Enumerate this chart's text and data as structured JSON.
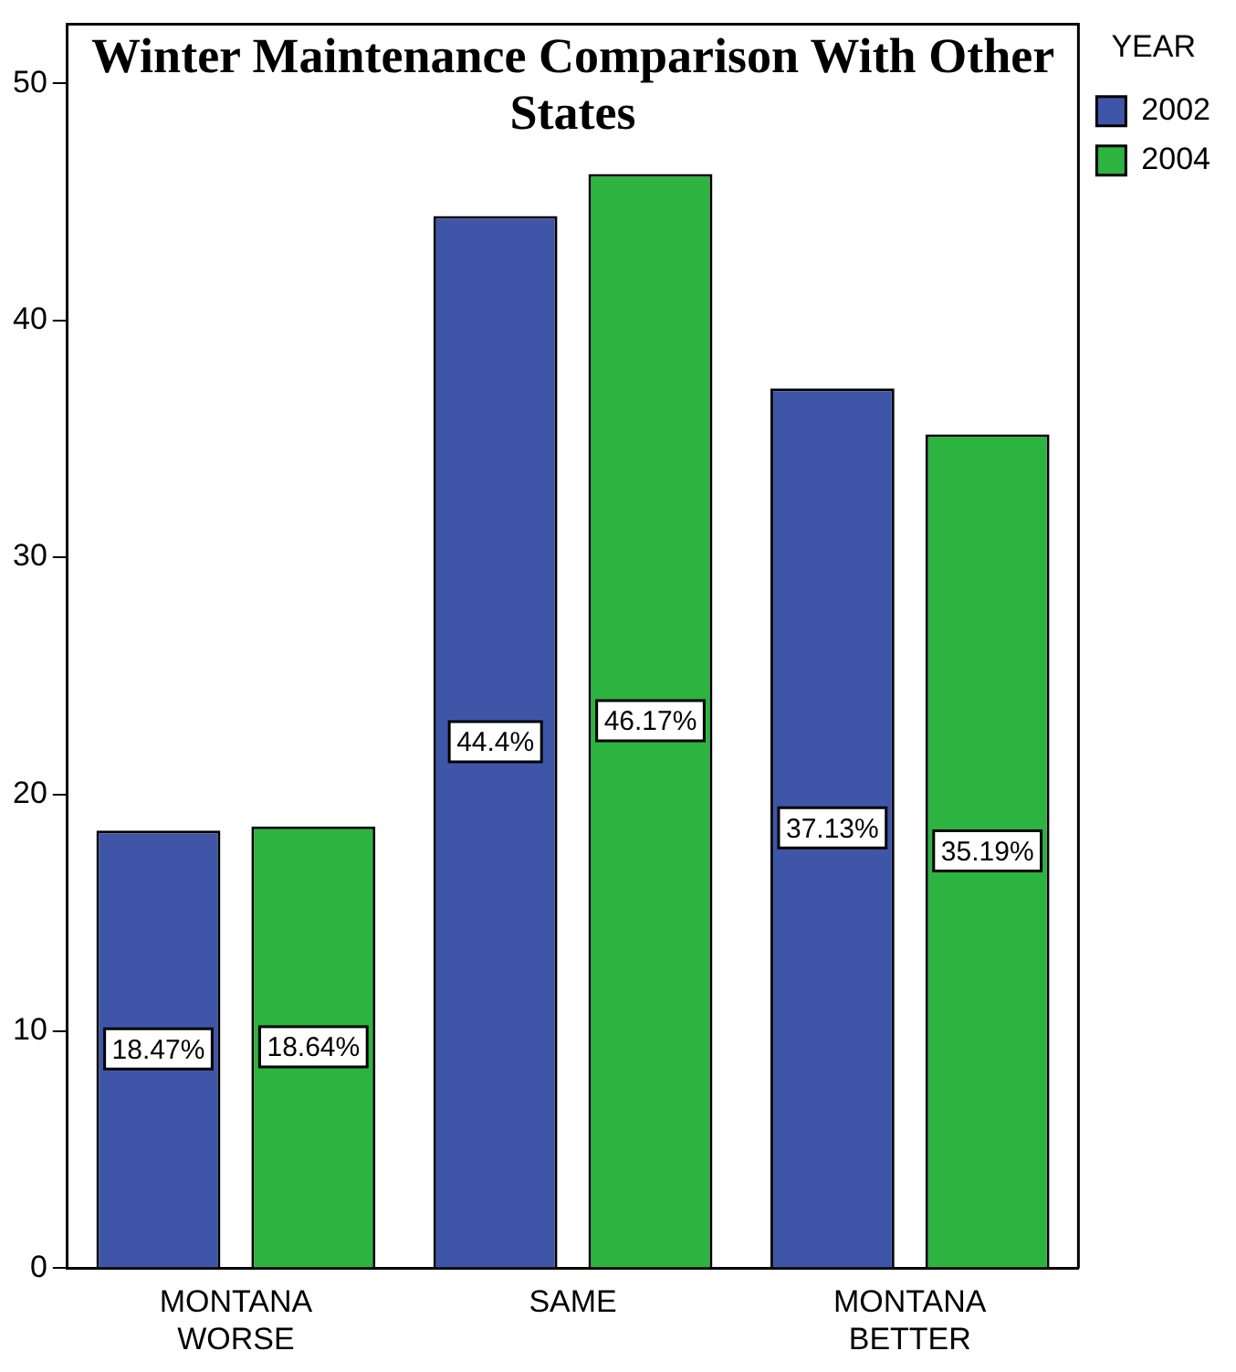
{
  "chart_data": {
    "type": "bar",
    "title": "Winter Maintenance Comparison With Other States",
    "legend_title": "YEAR",
    "categories": [
      "MONTANA WORSE",
      "SAME",
      "MONTANA BETTER"
    ],
    "series": [
      {
        "name": "2002",
        "color": "#3f56a8",
        "values": [
          18.47,
          44.4,
          37.13
        ],
        "value_labels": [
          "18.47%",
          "44.4%",
          "37.13%"
        ]
      },
      {
        "name": "2004",
        "color": "#2db340",
        "values": [
          18.64,
          46.17,
          35.19
        ],
        "value_labels": [
          "18.64%",
          "46.17%",
          "35.19%"
        ]
      }
    ],
    "ylim": [
      0,
      52.5
    ],
    "yticks": [
      0,
      10,
      20,
      30,
      40,
      50
    ],
    "grid": false,
    "legend": "top right"
  }
}
